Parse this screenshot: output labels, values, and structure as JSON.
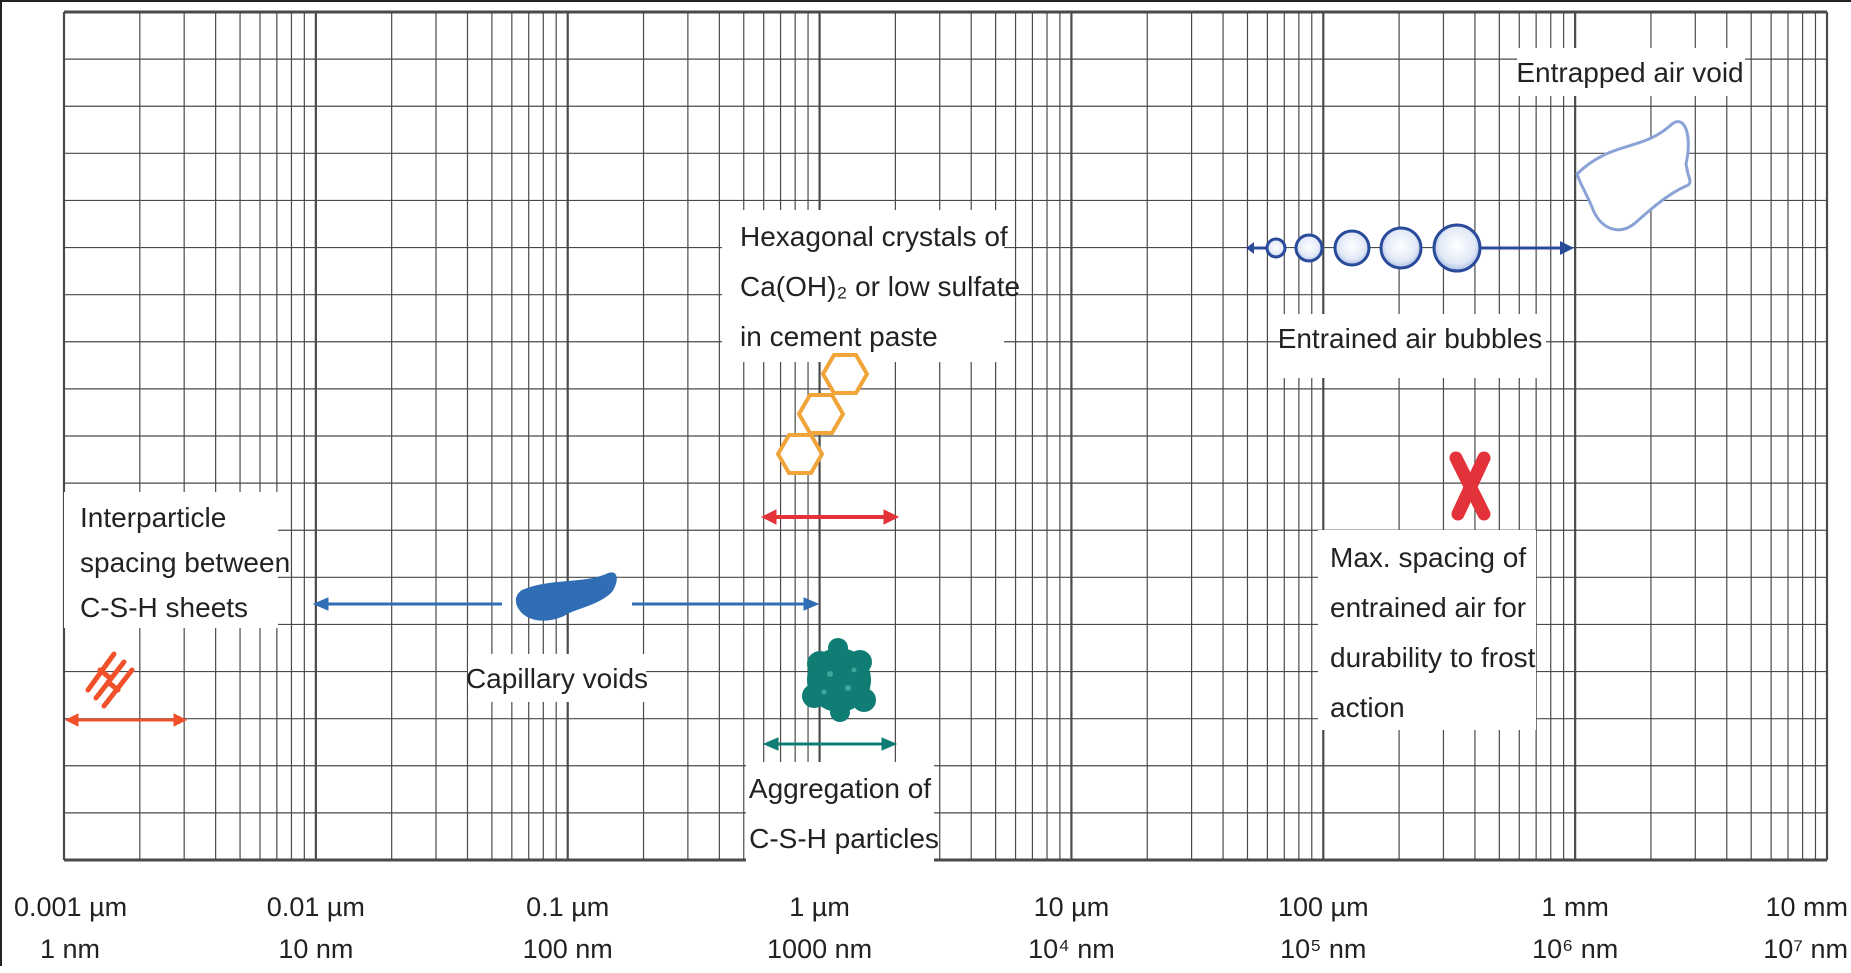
{
  "axis": {
    "scale": "log",
    "range_um": [
      0.001,
      10000
    ],
    "ticks": [
      {
        "top": "0.001 µm",
        "bottom": "1 nm"
      },
      {
        "top": "0.01 µm",
        "bottom": "10 nm"
      },
      {
        "top": "0.1 µm",
        "bottom": "100 nm"
      },
      {
        "top": "1 µm",
        "bottom": "1000 nm"
      },
      {
        "top": "10 µm",
        "bottom": "10⁴ nm"
      },
      {
        "top": "100 µm",
        "bottom": "10⁵ nm"
      },
      {
        "top": "1 mm",
        "bottom": "10⁶ nm"
      },
      {
        "top": "10 mm",
        "bottom": "10⁷ nm"
      }
    ],
    "grid": true
  },
  "labels": {
    "entrapped": "Entrapped air void",
    "hex_line1": "Hexagonal crystals of",
    "hex_line2": "Ca(OH)₂ or low sulfate",
    "hex_line3": "in cement paste",
    "entrained": "Entrained air bubbles",
    "interparticle_line1": "Interparticle",
    "interparticle_line2": "spacing between",
    "interparticle_line3": "C-S-H sheets",
    "capillary": "Capillary voids",
    "aggregation_line1": "Aggregation of",
    "aggregation_line2": "C-S-H particles",
    "maxspacing_line1": "Max. spacing of",
    "maxspacing_line2": "entrained air for",
    "maxspacing_line3": "durability to frost",
    "maxspacing_line4": "action"
  },
  "colors": {
    "grid": "#4a4a4a",
    "hexagon": "#f0a43a",
    "red": "#e4323a",
    "blue": "#2f6db5",
    "teal": "#0f7d73",
    "navy": "#2a4a9a",
    "orange_red": "#f0502a",
    "outline": "#5b7cc0"
  },
  "icons": [
    "hexagon-crystal-icon",
    "air-bubble-icon",
    "entrapped-void-icon",
    "capillary-void-icon",
    "csh-sheets-icon",
    "csh-aggregate-icon",
    "cross-icon"
  ]
}
